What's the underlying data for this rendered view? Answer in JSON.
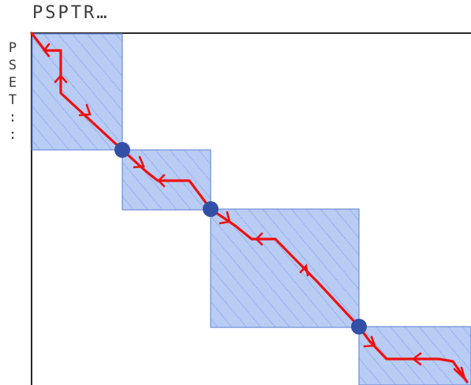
{
  "axes": {
    "top_label": "PSPTR…",
    "left_label": [
      "P",
      "S",
      "E",
      "T",
      ":",
      ":"
    ]
  },
  "colors": {
    "axis": "#2a2a2a",
    "block_fill": "#7d9ee8",
    "block_edge": "#6d8ed6",
    "path": "#ee1111",
    "node": "#334fa6",
    "label_text": "#3a3a3a"
  },
  "blocks": [
    {
      "id": "block-1"
    },
    {
      "id": "block-2"
    },
    {
      "id": "block-3"
    },
    {
      "id": "block-4"
    }
  ],
  "nodes": [
    {
      "id": "node-1"
    },
    {
      "id": "node-2"
    },
    {
      "id": "node-3"
    }
  ]
}
